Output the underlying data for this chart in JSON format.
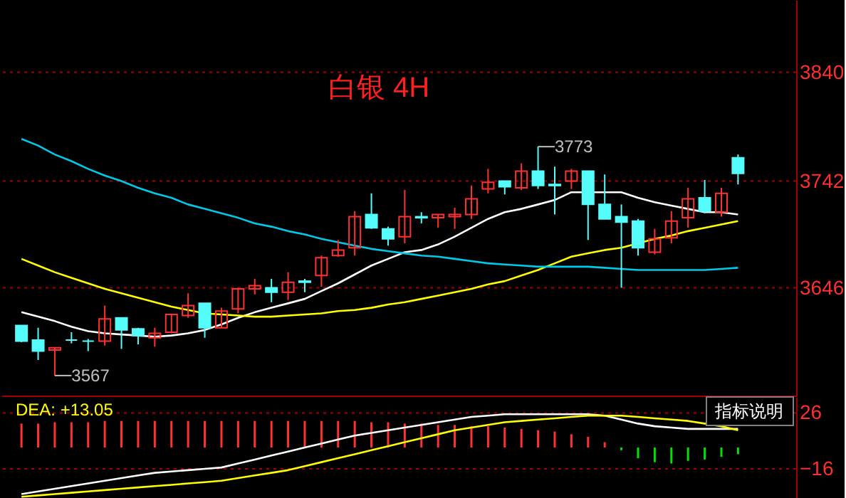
{
  "chart_data": [
    {
      "type": "candlestick",
      "title": "白银 4H",
      "categories": [
        null,
        null,
        null,
        null,
        null,
        null,
        null,
        null,
        null,
        null,
        null,
        null,
        null,
        null,
        null,
        null,
        null,
        null,
        null,
        null,
        null,
        null,
        null,
        null,
        null,
        null,
        null,
        null,
        null,
        null,
        null,
        null,
        null,
        null,
        null,
        null,
        null,
        null,
        null,
        null,
        null,
        null,
        null,
        null
      ],
      "ohlc": [
        [
          3612,
          3612,
          3597,
          3598
        ],
        [
          3599,
          3610,
          3581,
          3589
        ],
        [
          3590,
          3592,
          3567,
          3592
        ],
        [
          3599,
          3606,
          3596,
          3599
        ],
        [
          3598,
          3600,
          3589,
          3598
        ],
        [
          3598,
          3630,
          3594,
          3618
        ],
        [
          3619,
          3619,
          3591,
          3608
        ],
        [
          3609,
          3610,
          3595,
          3603
        ],
        [
          3601,
          3610,
          3593,
          3605
        ],
        [
          3606,
          3622,
          3605,
          3622
        ],
        [
          3621,
          3641,
          3619,
          3630
        ],
        [
          3632,
          3632,
          3601,
          3610
        ],
        [
          3610,
          3628,
          3610,
          3625
        ],
        [
          3627,
          3646,
          3623,
          3645
        ],
        [
          3645,
          3654,
          3640,
          3648
        ],
        [
          3646,
          3654,
          3633,
          3642
        ],
        [
          3642,
          3660,
          3635,
          3651
        ],
        [
          3652,
          3654,
          3642,
          3651
        ],
        [
          3657,
          3675,
          3647,
          3673
        ],
        [
          3675,
          3689,
          3674,
          3680
        ],
        [
          3682,
          3715,
          3675,
          3710
        ],
        [
          3712,
          3731,
          3699,
          3700
        ],
        [
          3699,
          3701,
          3684,
          3690
        ],
        [
          3692,
          3734,
          3686,
          3710
        ],
        [
          3710,
          3714,
          3704,
          3709
        ],
        [
          3709,
          3712,
          3700,
          3712
        ],
        [
          3710,
          3718,
          3699,
          3712
        ],
        [
          3712,
          3738,
          3708,
          3726
        ],
        [
          3735,
          3753,
          3731,
          3741
        ],
        [
          3742,
          3742,
          3730,
          3737
        ],
        [
          3736,
          3758,
          3734,
          3751
        ],
        [
          3751,
          3773,
          3735,
          3738
        ],
        [
          3739,
          3755,
          3712,
          3738
        ],
        [
          3742,
          3753,
          3735,
          3751
        ],
        [
          3751,
          3751,
          3689,
          3721
        ],
        [
          3721,
          3748,
          3708,
          3708
        ],
        [
          3710,
          3721,
          3646,
          3705
        ],
        [
          3706,
          3708,
          3675,
          3682
        ],
        [
          3678,
          3699,
          3676,
          3690
        ],
        [
          3691,
          3715,
          3686,
          3706
        ],
        [
          3709,
          3736,
          3700,
          3726
        ],
        [
          3727,
          3743,
          3713,
          3715
        ],
        [
          3714,
          3736,
          3710,
          3731
        ],
        [
          3763,
          3766,
          3739,
          3749
        ]
      ],
      "colors": [
        "#54fcfc",
        "#54fcfc",
        "#ff3232",
        "#54fcfc",
        "#54fcfc",
        "#ff3232",
        "#54fcfc",
        "#54fcfc",
        "#ff3232",
        "#ff3232",
        "#ff3232",
        "#54fcfc",
        "#ff3232",
        "#ff3232",
        "#ff3232",
        "#54fcfc",
        "#ff3232",
        "#54fcfc",
        "#ff3232",
        "#ff3232",
        "#ff3232",
        "#54fcfc",
        "#54fcfc",
        "#ff3232",
        "#54fcfc",
        "#ff3232",
        "#ff3232",
        "#ff3232",
        "#ff3232",
        "#54fcfc",
        "#ff3232",
        "#54fcfc",
        "#54fcfc",
        "#ff3232",
        "#54fcfc",
        "#54fcfc",
        "#54fcfc",
        "#54fcfc",
        "#ff3232",
        "#ff3232",
        "#ff3232",
        "#54fcfc",
        "#ff3232",
        "#54fcfc"
      ],
      "series": [
        {
          "type": "line",
          "color": "#ffffff",
          "values": [
            3624,
            3620,
            3616,
            3611,
            3607,
            3605,
            3604,
            3603,
            3602,
            3603,
            3605,
            3608,
            3613,
            3619,
            3624,
            3628,
            3632,
            3636,
            3643,
            3650,
            3658,
            3666,
            3672,
            3678,
            3680,
            3685,
            3692,
            3700,
            3708,
            3714,
            3717,
            3721,
            3725,
            3732,
            null,
            3732,
            3732,
            3727,
            3723,
            3720,
            3717,
            3714,
            3714,
            3712
          ]
        },
        {
          "type": "line",
          "color": "#ffff00",
          "values": [
            3672,
            3666,
            3660,
            3655,
            3650,
            3645,
            3641,
            3637,
            3633,
            3629,
            3626,
            3623,
            3622,
            3621,
            3620,
            3620,
            3621,
            3622,
            3623,
            3625,
            3626,
            3628,
            3631,
            3633,
            3636,
            3639,
            3642,
            3645,
            3649,
            3652,
            3657,
            3662,
            3668,
            3674,
            3677,
            3680,
            3682,
            null,
            3690,
            3693,
            3697,
            3700,
            3703,
            3706
          ]
        },
        {
          "type": "line",
          "color": "#00c8e6",
          "values": [
            3780,
            3774,
            3766,
            3760,
            3753,
            3747,
            3742,
            3736,
            3731,
            3727,
            3721,
            3717,
            3713,
            3709,
            3704,
            3701,
            3697,
            3694,
            3690,
            3687,
            3684,
            3681,
            3679,
            3677,
            3675,
            3674,
            3672,
            3670,
            3668,
            3667,
            3666,
            3665,
            3665,
            3665,
            3665,
            3664,
            3663,
            3662,
            3662,
            3662,
            3662,
            3662,
            3663,
            3664
          ]
        }
      ],
      "ylim": [
        3549,
        3905
      ],
      "yticks": [
        3646,
        3742,
        3840
      ],
      "grid": "y",
      "tick_labels": "y",
      "annotations": [
        "3773",
        "3567"
      ]
    },
    {
      "type": "bar",
      "categories": [
        null,
        null,
        null,
        null,
        null,
        null,
        null,
        null,
        null,
        null,
        null,
        null,
        null,
        null,
        null,
        null,
        null,
        null,
        null,
        null,
        null,
        null,
        null,
        null,
        null,
        null,
        null,
        null,
        null,
        null,
        null,
        null,
        null,
        null,
        null,
        null,
        null,
        null,
        null,
        null,
        null,
        null,
        null,
        null
      ],
      "series": [
        {
          "type": "bar",
          "values": [
            18,
            18,
            19,
            19,
            19,
            20,
            20,
            20,
            20,
            20,
            20,
            20,
            20,
            20,
            20,
            20,
            20,
            20,
            20,
            20,
            20,
            19,
            19,
            18,
            18,
            17,
            17,
            16,
            16,
            15,
            14,
            13,
            12,
            10,
            8,
            4,
            -2,
            -8,
            -11,
            -12,
            -10,
            -9,
            -7,
            -5
          ],
          "colors": [
            "#ff3232",
            "#ff3232",
            "#ff3232",
            "#ff3232",
            "#ff3232",
            "#ff3232",
            "#ff3232",
            "#ff3232",
            "#ff3232",
            "#ff3232",
            "#ff3232",
            "#ff3232",
            "#ff3232",
            "#ff3232",
            "#ff3232",
            "#ff3232",
            "#ff3232",
            "#ff3232",
            "#ff3232",
            "#ff3232",
            "#ff3232",
            "#ff3232",
            "#ff3232",
            "#ff3232",
            "#ff3232",
            "#ff3232",
            "#ff3232",
            "#ff3232",
            "#ff3232",
            "#ff3232",
            "#ff3232",
            "#ff3232",
            "#ff3232",
            "#ff3232",
            "#ff3232",
            "#ff3232",
            "#00e000",
            "#00e000",
            "#00e000",
            "#00e000",
            "#00e000",
            "#00e000",
            "#00e000",
            "#00e000"
          ]
        },
        {
          "type": "line",
          "color": "#ffffff",
          "values": [
            -35,
            -33,
            -31,
            -29,
            -27,
            -25,
            -23,
            -21,
            -19,
            -18,
            -17,
            -16,
            -15,
            -12,
            -9,
            -6,
            -3,
            0,
            3,
            6,
            9,
            11,
            13,
            15,
            17,
            19,
            21,
            23,
            24,
            25,
            25,
            25,
            25,
            25,
            25,
            24,
            21,
            18,
            16,
            15,
            14,
            14,
            14,
            14
          ]
        },
        {
          "type": "line",
          "color": "#ffff00",
          "values": [
            -37,
            -36,
            -35,
            -34,
            -33,
            -32,
            -31,
            -30,
            -29,
            -28,
            -27,
            -26,
            -25,
            -23,
            -21,
            -19,
            -17,
            -14,
            -11,
            -8,
            -5,
            -2,
            1,
            4,
            7,
            10,
            13,
            15,
            17,
            19,
            20,
            21,
            22,
            23,
            24,
            24,
            24,
            23,
            22,
            21,
            20,
            18,
            16,
            13
          ]
        }
      ],
      "ylim": [
        -39,
        38
      ],
      "yticks": [
        -16,
        26
      ],
      "grid": "y",
      "tick_labels": "y",
      "annotations": [
        "DEA: +13.05",
        "指标说明"
      ]
    }
  ]
}
